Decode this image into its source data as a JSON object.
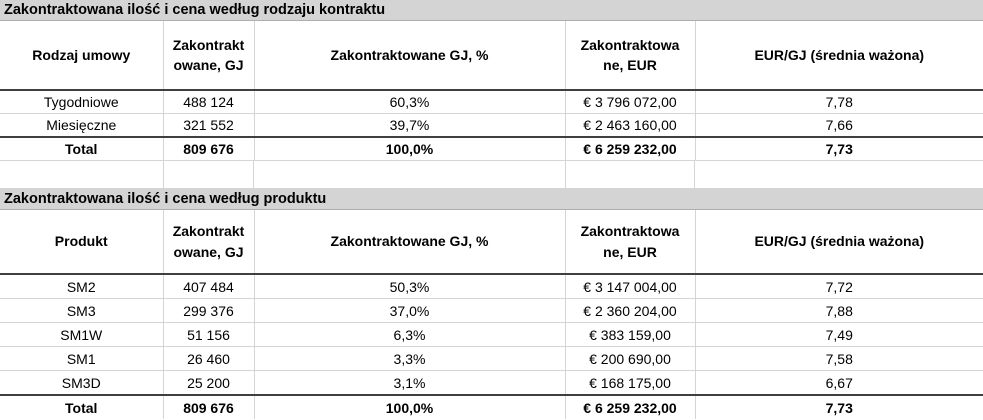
{
  "colors": {
    "title_bar_background": "#d4d4d4",
    "grid_line": "#d5d5d5",
    "strong_border": "#3f3f3f",
    "text": "#000000"
  },
  "tables": [
    {
      "title": "Zakontraktowana ilość i cena według rodzaju kontraktu",
      "headers": [
        "Rodzaj umowy",
        "Zakontrakt\nowane, GJ",
        "Zakontraktowane GJ, %",
        "Zakontraktowa\nne, EUR",
        "EUR/GJ (średnia ważona)"
      ],
      "rows": [
        [
          "Tygodniowe",
          "488 124",
          "60,3%",
          "€ 3 796 072,00",
          "7,78"
        ],
        [
          "Miesięczne",
          "321 552",
          "39,7%",
          "€ 2 463 160,00",
          "7,66"
        ],
        [
          "Total",
          "809 676",
          "100,0%",
          "€ 6 259 232,00",
          "7,73"
        ]
      ]
    },
    {
      "title": "Zakontraktowana ilość i cena według produktu",
      "headers": [
        "Produkt",
        "Zakontrakt\nowane, GJ",
        "Zakontraktowane GJ, %",
        "Zakontraktowa\nne, EUR",
        "EUR/GJ (średnia ważona)"
      ],
      "rows": [
        [
          "SM2",
          "407 484",
          "50,3%",
          "€ 3 147 004,00",
          "7,72"
        ],
        [
          "SM3",
          "299 376",
          "37,0%",
          "€ 2 360 204,00",
          "7,88"
        ],
        [
          "SM1W",
          "51 156",
          "6,3%",
          "€ 383 159,00",
          "7,49"
        ],
        [
          "SM1",
          "26 460",
          "3,3%",
          "€ 200 690,00",
          "7,58"
        ],
        [
          "SM3D",
          "25 200",
          "3,1%",
          "€ 168 175,00",
          "6,67"
        ],
        [
          "Total",
          "809 676",
          "100,0%",
          "€ 6 259 232,00",
          "7,73"
        ]
      ]
    }
  ]
}
